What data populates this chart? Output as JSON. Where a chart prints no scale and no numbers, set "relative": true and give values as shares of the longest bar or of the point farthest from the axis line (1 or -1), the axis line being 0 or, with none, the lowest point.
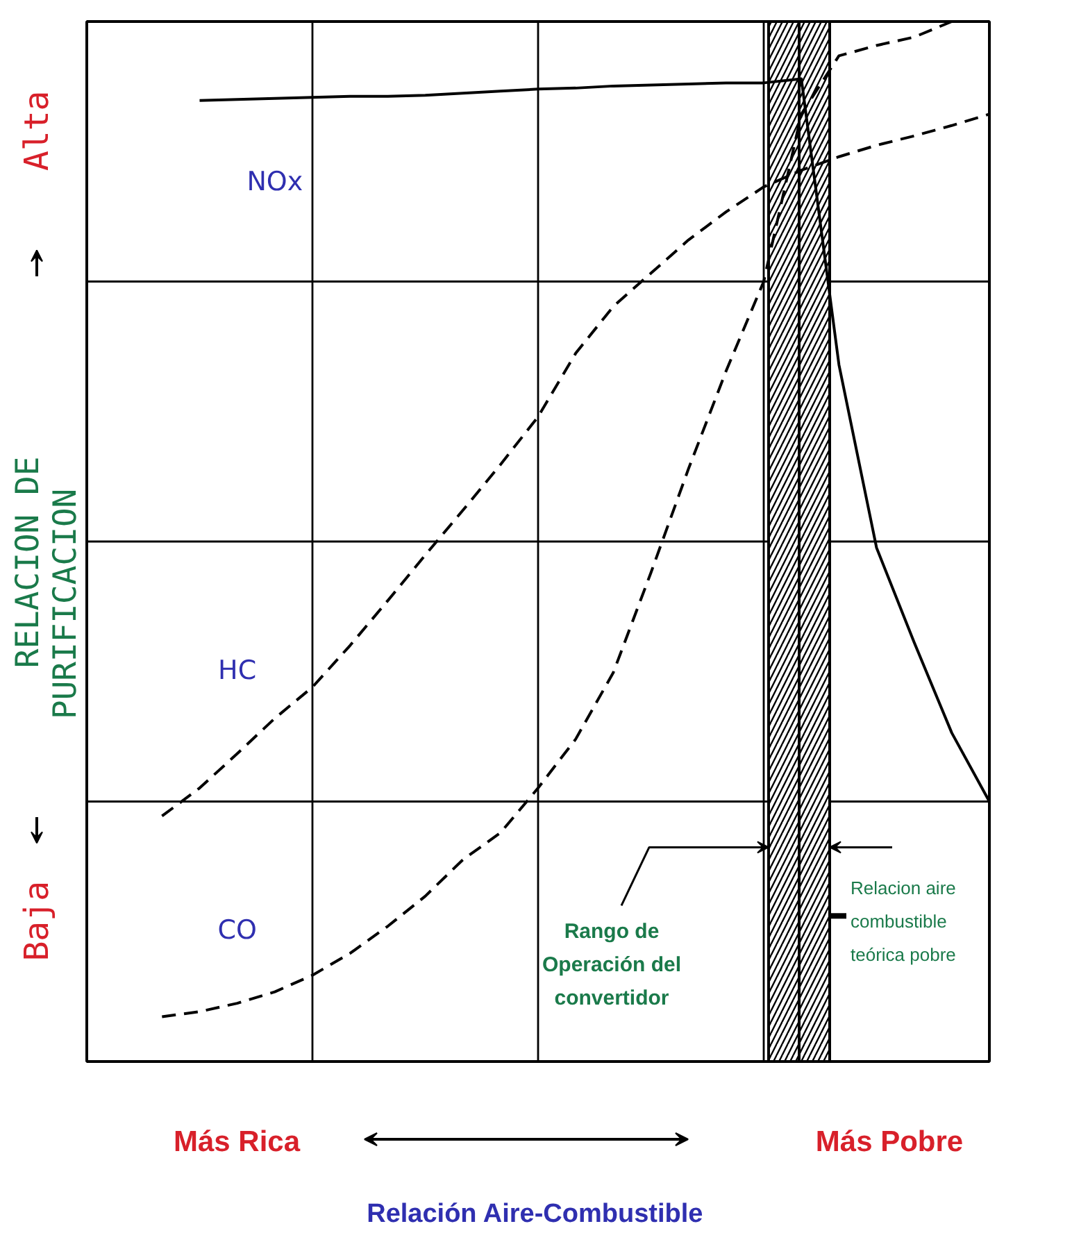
{
  "chart_data": {
    "type": "line",
    "relative": true,
    "grid": true,
    "ylabel": "RELACION DE PURIFICACION",
    "categories": [
      null,
      null,
      null,
      null,
      null,
      null,
      null,
      null,
      null,
      null,
      null,
      null,
      null,
      null,
      null,
      null,
      null,
      null,
      null,
      null,
      null,
      null,
      null,
      null,
      null
    ],
    "series": [
      {
        "name": "NOx",
        "color": "#000000",
        "line_style": "solid",
        "values": [
          null,
          null,
          null,
          0.924,
          0.925,
          0.926,
          0.927,
          0.928,
          0.928,
          0.929,
          0.931,
          0.933,
          0.935,
          0.936,
          0.938,
          0.939,
          0.94,
          0.941,
          0.941,
          0.945,
          0.67,
          0.494,
          0.403,
          0.316,
          0.25
        ]
      },
      {
        "name": "HC",
        "color": "#000000",
        "line_style": "dashed",
        "values": [
          null,
          null,
          0.236,
          0.263,
          0.296,
          0.33,
          0.36,
          0.4,
          0.443,
          0.487,
          0.53,
          0.574,
          0.62,
          0.681,
          0.726,
          0.758,
          0.79,
          0.817,
          0.841,
          0.857,
          0.87,
          0.881,
          0.89,
          0.9,
          0.911
        ]
      },
      {
        "name": "CO",
        "color": "#000000",
        "line_style": "dashed",
        "values": [
          null,
          null,
          0.043,
          0.048,
          0.056,
          0.067,
          0.083,
          0.104,
          0.13,
          0.159,
          0.194,
          0.22,
          0.263,
          0.31,
          0.374,
          0.47,
          0.57,
          0.664,
          0.75,
          0.911,
          0.967,
          0.977,
          0.985,
          1.0,
          null
        ]
      }
    ],
    "annotations": [
      "Baja",
      "Alta",
      "Más Rica",
      "Más Pobre",
      "Rango de Operación del convertidor",
      "Relacion aire combustible teórica pobre",
      "Relación Aire-Combustible"
    ]
  }
}
